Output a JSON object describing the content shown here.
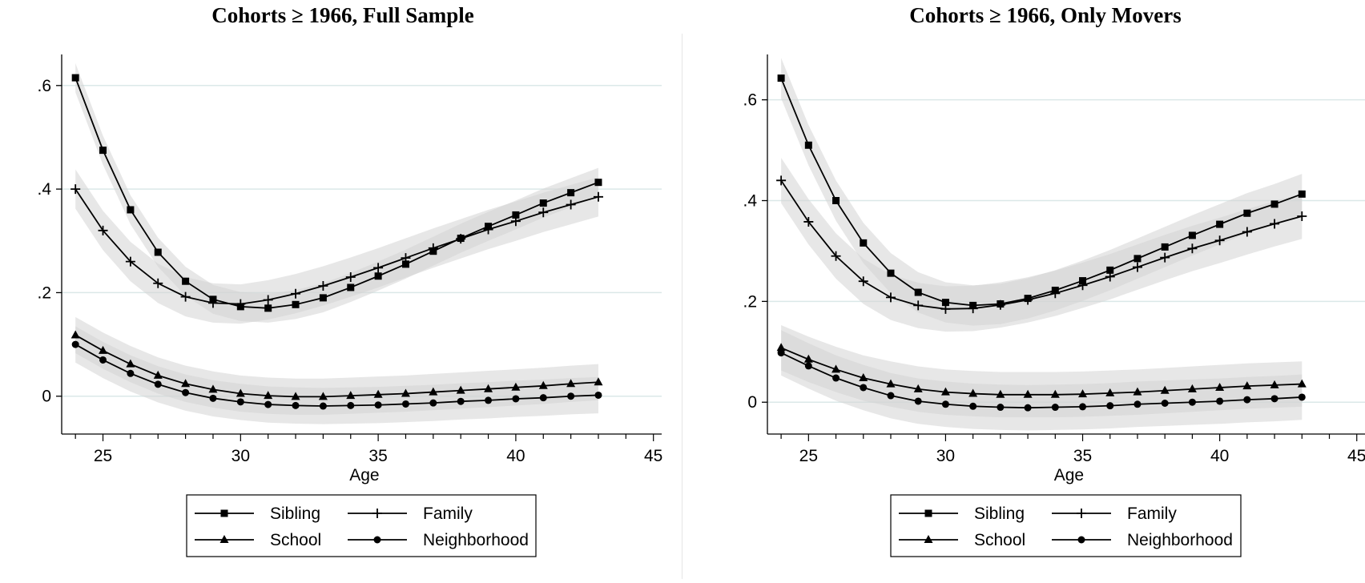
{
  "chart_data": [
    {
      "type": "line",
      "title": "Cohorts ≥ 1966, Full Sample",
      "xlabel": "Age",
      "ylabel": "",
      "xlim": [
        23.5,
        45.3
      ],
      "ylim": [
        -0.07,
        0.66
      ],
      "xticks": [
        25,
        30,
        35,
        40,
        45
      ],
      "xtick_labels": [
        "25",
        "30",
        "35",
        "40",
        "45"
      ],
      "yticks": [
        0,
        0.2,
        0.4,
        0.6
      ],
      "ytick_labels": [
        "0",
        ".2",
        ".4",
        ".6"
      ],
      "grid": true,
      "confidence_bands": true,
      "legend_position": "bottom",
      "x": [
        24,
        25,
        26,
        27,
        28,
        29,
        30,
        31,
        32,
        33,
        34,
        35,
        36,
        37,
        38,
        39,
        40,
        41,
        42,
        43
      ],
      "series": [
        {
          "name": "Sibling",
          "marker": "square",
          "values": [
            0.615,
            0.475,
            0.36,
            0.278,
            0.222,
            0.187,
            0.173,
            0.17,
            0.177,
            0.19,
            0.21,
            0.232,
            0.255,
            0.28,
            0.305,
            0.328,
            0.35,
            0.373,
            0.393,
            0.413
          ],
          "band": 0.028
        },
        {
          "name": "Family",
          "marker": "plus",
          "values": [
            0.4,
            0.32,
            0.26,
            0.218,
            0.192,
            0.18,
            0.178,
            0.186,
            0.198,
            0.213,
            0.23,
            0.248,
            0.267,
            0.286,
            0.304,
            0.322,
            0.338,
            0.355,
            0.37,
            0.385
          ],
          "band": 0.038
        },
        {
          "name": "School",
          "marker": "triangle",
          "values": [
            0.118,
            0.088,
            0.062,
            0.04,
            0.024,
            0.013,
            0.005,
            0.001,
            -0.001,
            -0.001,
            0.001,
            0.003,
            0.005,
            0.008,
            0.011,
            0.014,
            0.017,
            0.02,
            0.024,
            0.027
          ],
          "band": 0.035
        },
        {
          "name": "Neighborhood",
          "marker": "circle",
          "values": [
            0.1,
            0.07,
            0.044,
            0.023,
            0.007,
            -0.004,
            -0.011,
            -0.016,
            -0.018,
            -0.019,
            -0.018,
            -0.017,
            -0.015,
            -0.013,
            -0.01,
            -0.008,
            -0.005,
            -0.003,
            0.0,
            0.002
          ],
          "band": 0.035
        }
      ],
      "legend": [
        "Sibling",
        "Family",
        "School",
        "Neighborhood"
      ]
    },
    {
      "type": "line",
      "title": "Cohorts ≥ 1966, Only Movers",
      "xlabel": "Age",
      "ylabel": "",
      "xlim": [
        23.5,
        45.3
      ],
      "ylim": [
        -0.06,
        0.69
      ],
      "xticks": [
        25,
        30,
        35,
        40,
        45
      ],
      "xtick_labels": [
        "25",
        "30",
        "35",
        "40",
        "45"
      ],
      "yticks": [
        0,
        0.2,
        0.4,
        0.6
      ],
      "ytick_labels": [
        "0",
        ".2",
        ".4",
        ".6"
      ],
      "grid": true,
      "confidence_bands": true,
      "legend_position": "bottom",
      "x": [
        24,
        25,
        26,
        27,
        28,
        29,
        30,
        31,
        32,
        33,
        34,
        35,
        36,
        37,
        38,
        39,
        40,
        41,
        42,
        43
      ],
      "series": [
        {
          "name": "Sibling",
          "marker": "square",
          "values": [
            0.643,
            0.51,
            0.4,
            0.316,
            0.256,
            0.218,
            0.198,
            0.192,
            0.195,
            0.206,
            0.222,
            0.241,
            0.262,
            0.285,
            0.308,
            0.331,
            0.353,
            0.375,
            0.393,
            0.413
          ],
          "band": 0.04
        },
        {
          "name": "Family",
          "marker": "plus",
          "values": [
            0.44,
            0.358,
            0.29,
            0.24,
            0.208,
            0.192,
            0.185,
            0.186,
            0.193,
            0.203,
            0.216,
            0.232,
            0.249,
            0.268,
            0.287,
            0.305,
            0.321,
            0.338,
            0.354,
            0.369
          ],
          "band": 0.045
        },
        {
          "name": "School",
          "marker": "triangle",
          "values": [
            0.108,
            0.085,
            0.065,
            0.048,
            0.036,
            0.026,
            0.02,
            0.017,
            0.015,
            0.015,
            0.015,
            0.016,
            0.018,
            0.02,
            0.023,
            0.026,
            0.029,
            0.032,
            0.034,
            0.036
          ],
          "band": 0.045
        },
        {
          "name": "Neighborhood",
          "marker": "circle",
          "values": [
            0.098,
            0.072,
            0.048,
            0.029,
            0.013,
            0.002,
            -0.004,
            -0.008,
            -0.01,
            -0.011,
            -0.01,
            -0.009,
            -0.007,
            -0.004,
            -0.002,
            0.0,
            0.002,
            0.005,
            0.007,
            0.01
          ],
          "band": 0.045
        }
      ],
      "legend": [
        "Sibling",
        "Family",
        "School",
        "Neighborhood"
      ]
    }
  ],
  "colors": {
    "line": "#000000",
    "band": "#d3d3d3",
    "grid": "#dbe8e8",
    "axis": "#000000"
  }
}
